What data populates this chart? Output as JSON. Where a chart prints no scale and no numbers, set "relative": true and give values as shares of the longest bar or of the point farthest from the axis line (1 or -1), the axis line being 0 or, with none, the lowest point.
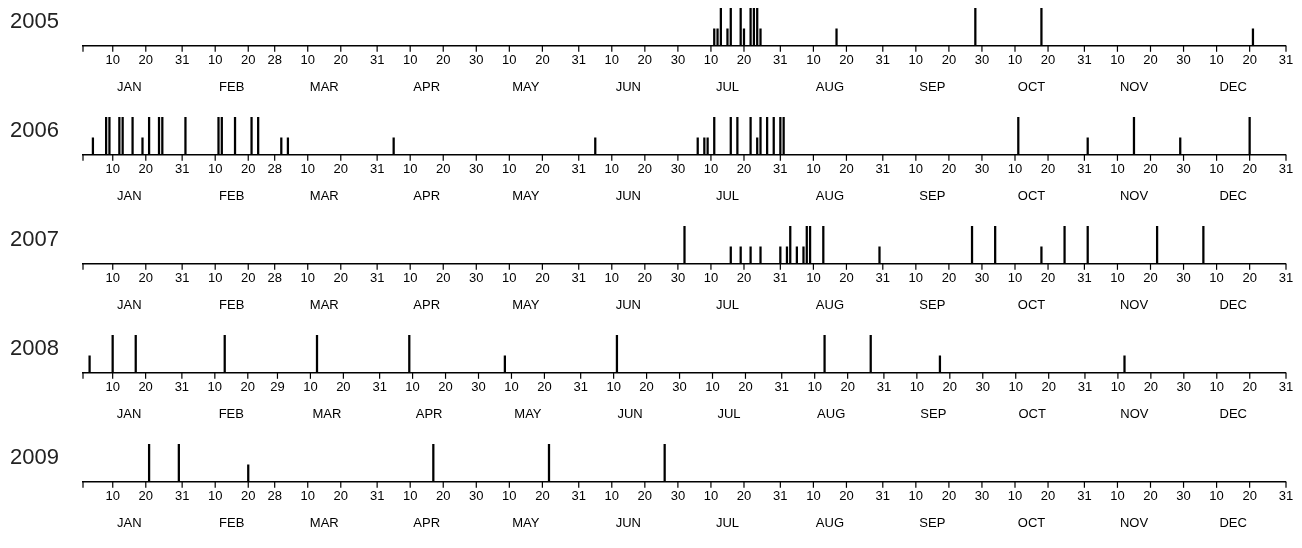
{
  "chart_data": [
    {
      "type": "bar",
      "title": "2005",
      "relative": true,
      "color": "#000000",
      "xlim": [
        "2005-01-01",
        "2005-12-31"
      ],
      "x": [
        "2005-07-11",
        "2005-07-12",
        "2005-07-13",
        "2005-07-15",
        "2005-07-16",
        "2005-07-19",
        "2005-07-20",
        "2005-07-22",
        "2005-07-23",
        "2005-07-24",
        "2005-07-25",
        "2005-08-17",
        "2005-09-28",
        "2005-10-18",
        "2005-12-21"
      ],
      "values": [
        0.45,
        0.45,
        1,
        0.45,
        1,
        1,
        0.45,
        1,
        1,
        1,
        0.45,
        0.45,
        1,
        1,
        0.45
      ],
      "xticks": [
        {
          "value": "2005-01-01",
          "label": null
        },
        {
          "value": "2005-01-10",
          "label": "10"
        },
        {
          "value": "2005-01-20",
          "label": "20"
        },
        {
          "value": "2005-01-31",
          "label": "31"
        },
        {
          "value": "2005-02-10",
          "label": "10"
        },
        {
          "value": "2005-02-20",
          "label": "20"
        },
        {
          "value": "2005-02-28",
          "label": "28"
        },
        {
          "value": "2005-03-10",
          "label": "10"
        },
        {
          "value": "2005-03-20",
          "label": "20"
        },
        {
          "value": "2005-03-31",
          "label": "31"
        },
        {
          "value": "2005-04-10",
          "label": "10"
        },
        {
          "value": "2005-04-20",
          "label": "20"
        },
        {
          "value": "2005-04-30",
          "label": "30"
        },
        {
          "value": "2005-05-10",
          "label": "10"
        },
        {
          "value": "2005-05-20",
          "label": "20"
        },
        {
          "value": "2005-05-31",
          "label": "31"
        },
        {
          "value": "2005-06-10",
          "label": "10"
        },
        {
          "value": "2005-06-20",
          "label": "20"
        },
        {
          "value": "2005-06-30",
          "label": "30"
        },
        {
          "value": "2005-07-10",
          "label": "10"
        },
        {
          "value": "2005-07-20",
          "label": "20"
        },
        {
          "value": "2005-07-31",
          "label": "31"
        },
        {
          "value": "2005-08-10",
          "label": "10"
        },
        {
          "value": "2005-08-20",
          "label": "20"
        },
        {
          "value": "2005-08-31",
          "label": "31"
        },
        {
          "value": "2005-09-10",
          "label": "10"
        },
        {
          "value": "2005-09-20",
          "label": "20"
        },
        {
          "value": "2005-09-30",
          "label": "30"
        },
        {
          "value": "2005-10-10",
          "label": "10"
        },
        {
          "value": "2005-10-20",
          "label": "20"
        },
        {
          "value": "2005-10-31",
          "label": "31"
        },
        {
          "value": "2005-11-10",
          "label": "10"
        },
        {
          "value": "2005-11-20",
          "label": "20"
        },
        {
          "value": "2005-11-30",
          "label": "30"
        },
        {
          "value": "2005-12-10",
          "label": "10"
        },
        {
          "value": "2005-12-20",
          "label": "20"
        },
        {
          "value": "2005-12-31",
          "label": "31"
        }
      ],
      "x2lim": [
        "2005-01-01",
        "2005-12-31"
      ],
      "x2ticks": [
        {
          "value": "2005-01-15",
          "label": "JAN"
        },
        {
          "value": "2005-02-15",
          "label": "FEB"
        },
        {
          "value": "2005-03-15",
          "label": "MAR"
        },
        {
          "value": "2005-04-15",
          "label": "APR"
        },
        {
          "value": "2005-05-15",
          "label": "MAY"
        },
        {
          "value": "2005-06-15",
          "label": "JUN"
        },
        {
          "value": "2005-07-15",
          "label": "JUL"
        },
        {
          "value": "2005-08-15",
          "label": "AUG"
        },
        {
          "value": "2005-09-15",
          "label": "SEP"
        },
        {
          "value": "2005-10-15",
          "label": "OCT"
        },
        {
          "value": "2005-11-15",
          "label": "NOV"
        },
        {
          "value": "2005-12-15",
          "label": "DEC"
        }
      ]
    },
    {
      "type": "bar",
      "title": "2006",
      "relative": true,
      "color": "#000000",
      "xlim": [
        "2006-01-01",
        "2006-12-31"
      ],
      "x": [
        "2006-01-04",
        "2006-01-08",
        "2006-01-09",
        "2006-01-12",
        "2006-01-13",
        "2006-01-16",
        "2006-01-19",
        "2006-01-21",
        "2006-01-24",
        "2006-01-25",
        "2006-02-01",
        "2006-02-11",
        "2006-02-12",
        "2006-02-16",
        "2006-02-21",
        "2006-02-23",
        "2006-03-02",
        "2006-03-04",
        "2006-04-05",
        "2006-06-05",
        "2006-07-06",
        "2006-07-08",
        "2006-07-09",
        "2006-07-11",
        "2006-07-16",
        "2006-07-18",
        "2006-07-22",
        "2006-07-24",
        "2006-07-25",
        "2006-07-27",
        "2006-07-29",
        "2006-07-31",
        "2006-08-01",
        "2006-10-11",
        "2006-11-01",
        "2006-11-15",
        "2006-11-29",
        "2006-12-20"
      ],
      "values": [
        0.45,
        1,
        1,
        1,
        1,
        1,
        0.45,
        1,
        1,
        1,
        1,
        1,
        1,
        1,
        1,
        1,
        0.45,
        0.45,
        0.45,
        0.45,
        0.45,
        0.45,
        0.45,
        1,
        1,
        1,
        1,
        0.45,
        1,
        1,
        1,
        1,
        1,
        1,
        0.45,
        1,
        0.45,
        1
      ],
      "xticks": [
        {
          "value": "2006-01-01",
          "label": null
        },
        {
          "value": "2006-01-10",
          "label": "10"
        },
        {
          "value": "2006-01-20",
          "label": "20"
        },
        {
          "value": "2006-01-31",
          "label": "31"
        },
        {
          "value": "2006-02-10",
          "label": "10"
        },
        {
          "value": "2006-02-20",
          "label": "20"
        },
        {
          "value": "2006-02-28",
          "label": "28"
        },
        {
          "value": "2006-03-10",
          "label": "10"
        },
        {
          "value": "2006-03-20",
          "label": "20"
        },
        {
          "value": "2006-03-31",
          "label": "31"
        },
        {
          "value": "2006-04-10",
          "label": "10"
        },
        {
          "value": "2006-04-20",
          "label": "20"
        },
        {
          "value": "2006-04-30",
          "label": "30"
        },
        {
          "value": "2006-05-10",
          "label": "10"
        },
        {
          "value": "2006-05-20",
          "label": "20"
        },
        {
          "value": "2006-05-31",
          "label": "31"
        },
        {
          "value": "2006-06-10",
          "label": "10"
        },
        {
          "value": "2006-06-20",
          "label": "20"
        },
        {
          "value": "2006-06-30",
          "label": "30"
        },
        {
          "value": "2006-07-10",
          "label": "10"
        },
        {
          "value": "2006-07-20",
          "label": "20"
        },
        {
          "value": "2006-07-31",
          "label": "31"
        },
        {
          "value": "2006-08-10",
          "label": "10"
        },
        {
          "value": "2006-08-20",
          "label": "20"
        },
        {
          "value": "2006-08-31",
          "label": "31"
        },
        {
          "value": "2006-09-10",
          "label": "10"
        },
        {
          "value": "2006-09-20",
          "label": "20"
        },
        {
          "value": "2006-09-30",
          "label": "30"
        },
        {
          "value": "2006-10-10",
          "label": "10"
        },
        {
          "value": "2006-10-20",
          "label": "20"
        },
        {
          "value": "2006-10-31",
          "label": "31"
        },
        {
          "value": "2006-11-10",
          "label": "10"
        },
        {
          "value": "2006-11-20",
          "label": "20"
        },
        {
          "value": "2006-11-30",
          "label": "30"
        },
        {
          "value": "2006-12-10",
          "label": "10"
        },
        {
          "value": "2006-12-20",
          "label": "20"
        },
        {
          "value": "2006-12-31",
          "label": "31"
        }
      ],
      "x2lim": [
        "2006-01-01",
        "2006-12-31"
      ],
      "x2ticks": [
        {
          "value": "2006-01-15",
          "label": "JAN"
        },
        {
          "value": "2006-02-15",
          "label": "FEB"
        },
        {
          "value": "2006-03-15",
          "label": "MAR"
        },
        {
          "value": "2006-04-15",
          "label": "APR"
        },
        {
          "value": "2006-05-15",
          "label": "MAY"
        },
        {
          "value": "2006-06-15",
          "label": "JUN"
        },
        {
          "value": "2006-07-15",
          "label": "JUL"
        },
        {
          "value": "2006-08-15",
          "label": "AUG"
        },
        {
          "value": "2006-09-15",
          "label": "SEP"
        },
        {
          "value": "2006-10-15",
          "label": "OCT"
        },
        {
          "value": "2006-11-15",
          "label": "NOV"
        },
        {
          "value": "2006-12-15",
          "label": "DEC"
        }
      ]
    },
    {
      "type": "bar",
      "title": "2007",
      "relative": true,
      "color": "#000000",
      "xlim": [
        "2007-01-01",
        "2007-12-31"
      ],
      "x": [
        "2007-07-02",
        "2007-07-16",
        "2007-07-19",
        "2007-07-22",
        "2007-07-25",
        "2007-07-31",
        "2007-08-02",
        "2007-08-03",
        "2007-08-05",
        "2007-08-07",
        "2007-08-08",
        "2007-08-09",
        "2007-08-13",
        "2007-08-30",
        "2007-09-27",
        "2007-10-04",
        "2007-10-18",
        "2007-10-25",
        "2007-11-01",
        "2007-11-22",
        "2007-12-06"
      ],
      "values": [
        1,
        0.45,
        0.45,
        0.45,
        0.45,
        0.45,
        0.45,
        1,
        0.45,
        0.45,
        1,
        1,
        1,
        0.45,
        1,
        1,
        0.45,
        1,
        1,
        1,
        1
      ],
      "xticks": [
        {
          "value": "2007-01-01",
          "label": null
        },
        {
          "value": "2007-01-10",
          "label": "10"
        },
        {
          "value": "2007-01-20",
          "label": "20"
        },
        {
          "value": "2007-01-31",
          "label": "31"
        },
        {
          "value": "2007-02-10",
          "label": "10"
        },
        {
          "value": "2007-02-20",
          "label": "20"
        },
        {
          "value": "2007-02-28",
          "label": "28"
        },
        {
          "value": "2007-03-10",
          "label": "10"
        },
        {
          "value": "2007-03-20",
          "label": "20"
        },
        {
          "value": "2007-03-31",
          "label": "31"
        },
        {
          "value": "2007-04-10",
          "label": "10"
        },
        {
          "value": "2007-04-20",
          "label": "20"
        },
        {
          "value": "2007-04-30",
          "label": "30"
        },
        {
          "value": "2007-05-10",
          "label": "10"
        },
        {
          "value": "2007-05-20",
          "label": "20"
        },
        {
          "value": "2007-05-31",
          "label": "31"
        },
        {
          "value": "2007-06-10",
          "label": "10"
        },
        {
          "value": "2007-06-20",
          "label": "20"
        },
        {
          "value": "2007-06-30",
          "label": "30"
        },
        {
          "value": "2007-07-10",
          "label": "10"
        },
        {
          "value": "2007-07-20",
          "label": "20"
        },
        {
          "value": "2007-07-31",
          "label": "31"
        },
        {
          "value": "2007-08-10",
          "label": "10"
        },
        {
          "value": "2007-08-20",
          "label": "20"
        },
        {
          "value": "2007-08-31",
          "label": "31"
        },
        {
          "value": "2007-09-10",
          "label": "10"
        },
        {
          "value": "2007-09-20",
          "label": "20"
        },
        {
          "value": "2007-09-30",
          "label": "30"
        },
        {
          "value": "2007-10-10",
          "label": "10"
        },
        {
          "value": "2007-10-20",
          "label": "20"
        },
        {
          "value": "2007-10-31",
          "label": "31"
        },
        {
          "value": "2007-11-10",
          "label": "10"
        },
        {
          "value": "2007-11-20",
          "label": "20"
        },
        {
          "value": "2007-11-30",
          "label": "30"
        },
        {
          "value": "2007-12-10",
          "label": "10"
        },
        {
          "value": "2007-12-20",
          "label": "20"
        },
        {
          "value": "2007-12-31",
          "label": "31"
        }
      ],
      "x2lim": [
        "2007-01-01",
        "2007-12-31"
      ],
      "x2ticks": [
        {
          "value": "2007-01-15",
          "label": "JAN"
        },
        {
          "value": "2007-02-15",
          "label": "FEB"
        },
        {
          "value": "2007-03-15",
          "label": "MAR"
        },
        {
          "value": "2007-04-15",
          "label": "APR"
        },
        {
          "value": "2007-05-15",
          "label": "MAY"
        },
        {
          "value": "2007-06-15",
          "label": "JUN"
        },
        {
          "value": "2007-07-15",
          "label": "JUL"
        },
        {
          "value": "2007-08-15",
          "label": "AUG"
        },
        {
          "value": "2007-09-15",
          "label": "SEP"
        },
        {
          "value": "2007-10-15",
          "label": "OCT"
        },
        {
          "value": "2007-11-15",
          "label": "NOV"
        },
        {
          "value": "2007-12-15",
          "label": "DEC"
        }
      ]
    },
    {
      "type": "bar",
      "title": "2008",
      "relative": true,
      "color": "#000000",
      "xlim": [
        "2008-01-01",
        "2008-12-31"
      ],
      "x": [
        "2008-01-03",
        "2008-01-10",
        "2008-01-17",
        "2008-02-13",
        "2008-03-12",
        "2008-04-09",
        "2008-05-08",
        "2008-06-11",
        "2008-08-13",
        "2008-08-27",
        "2008-09-17",
        "2008-11-12"
      ],
      "values": [
        0.45,
        1,
        1,
        1,
        1,
        1,
        0.45,
        1,
        1,
        1,
        0.45,
        0.45
      ],
      "xticks": [
        {
          "value": "2008-01-01",
          "label": null
        },
        {
          "value": "2008-01-10",
          "label": "10"
        },
        {
          "value": "2008-01-20",
          "label": "20"
        },
        {
          "value": "2008-01-31",
          "label": "31"
        },
        {
          "value": "2008-02-10",
          "label": "10"
        },
        {
          "value": "2008-02-20",
          "label": "20"
        },
        {
          "value": "2008-02-29",
          "label": "29"
        },
        {
          "value": "2008-03-10",
          "label": "10"
        },
        {
          "value": "2008-03-20",
          "label": "20"
        },
        {
          "value": "2008-03-31",
          "label": "31"
        },
        {
          "value": "2008-04-10",
          "label": "10"
        },
        {
          "value": "2008-04-20",
          "label": "20"
        },
        {
          "value": "2008-04-30",
          "label": "30"
        },
        {
          "value": "2008-05-10",
          "label": "10"
        },
        {
          "value": "2008-05-20",
          "label": "20"
        },
        {
          "value": "2008-05-31",
          "label": "31"
        },
        {
          "value": "2008-06-10",
          "label": "10"
        },
        {
          "value": "2008-06-20",
          "label": "20"
        },
        {
          "value": "2008-06-30",
          "label": "30"
        },
        {
          "value": "2008-07-10",
          "label": "10"
        },
        {
          "value": "2008-07-20",
          "label": "20"
        },
        {
          "value": "2008-07-31",
          "label": "31"
        },
        {
          "value": "2008-08-10",
          "label": "10"
        },
        {
          "value": "2008-08-20",
          "label": "20"
        },
        {
          "value": "2008-08-31",
          "label": "31"
        },
        {
          "value": "2008-09-10",
          "label": "10"
        },
        {
          "value": "2008-09-20",
          "label": "20"
        },
        {
          "value": "2008-09-30",
          "label": "30"
        },
        {
          "value": "2008-10-10",
          "label": "10"
        },
        {
          "value": "2008-10-20",
          "label": "20"
        },
        {
          "value": "2008-10-31",
          "label": "31"
        },
        {
          "value": "2008-11-10",
          "label": "10"
        },
        {
          "value": "2008-11-20",
          "label": "20"
        },
        {
          "value": "2008-11-30",
          "label": "30"
        },
        {
          "value": "2008-12-10",
          "label": "10"
        },
        {
          "value": "2008-12-20",
          "label": "20"
        },
        {
          "value": "2008-12-31",
          "label": "31"
        }
      ],
      "x2lim": [
        "2008-01-01",
        "2008-12-31"
      ],
      "x2ticks": [
        {
          "value": "2008-01-15",
          "label": "JAN"
        },
        {
          "value": "2008-02-15",
          "label": "FEB"
        },
        {
          "value": "2008-03-15",
          "label": "MAR"
        },
        {
          "value": "2008-04-15",
          "label": "APR"
        },
        {
          "value": "2008-05-15",
          "label": "MAY"
        },
        {
          "value": "2008-06-15",
          "label": "JUN"
        },
        {
          "value": "2008-07-15",
          "label": "JUL"
        },
        {
          "value": "2008-08-15",
          "label": "AUG"
        },
        {
          "value": "2008-09-15",
          "label": "SEP"
        },
        {
          "value": "2008-10-15",
          "label": "OCT"
        },
        {
          "value": "2008-11-15",
          "label": "NOV"
        },
        {
          "value": "2008-12-15",
          "label": "DEC"
        }
      ]
    },
    {
      "type": "bar",
      "title": "2009",
      "relative": true,
      "color": "#000000",
      "xlim": [
        "2009-01-01",
        "2009-12-31"
      ],
      "x": [
        "2009-01-21",
        "2009-01-30",
        "2009-02-20",
        "2009-04-17",
        "2009-05-22",
        "2009-06-26"
      ],
      "values": [
        1,
        1,
        0.45,
        1,
        1,
        1
      ],
      "xticks": [
        {
          "value": "2009-01-01",
          "label": null
        },
        {
          "value": "2009-01-10",
          "label": "10"
        },
        {
          "value": "2009-01-20",
          "label": "20"
        },
        {
          "value": "2009-01-31",
          "label": "31"
        },
        {
          "value": "2009-02-10",
          "label": "10"
        },
        {
          "value": "2009-02-20",
          "label": "20"
        },
        {
          "value": "2009-02-28",
          "label": "28"
        },
        {
          "value": "2009-03-10",
          "label": "10"
        },
        {
          "value": "2009-03-20",
          "label": "20"
        },
        {
          "value": "2009-03-31",
          "label": "31"
        },
        {
          "value": "2009-04-10",
          "label": "10"
        },
        {
          "value": "2009-04-20",
          "label": "20"
        },
        {
          "value": "2009-04-30",
          "label": "30"
        },
        {
          "value": "2009-05-10",
          "label": "10"
        },
        {
          "value": "2009-05-20",
          "label": "20"
        },
        {
          "value": "2009-05-31",
          "label": "31"
        },
        {
          "value": "2009-06-10",
          "label": "10"
        },
        {
          "value": "2009-06-20",
          "label": "20"
        },
        {
          "value": "2009-06-30",
          "label": "30"
        },
        {
          "value": "2009-07-10",
          "label": "10"
        },
        {
          "value": "2009-07-20",
          "label": "20"
        },
        {
          "value": "2009-07-31",
          "label": "31"
        },
        {
          "value": "2009-08-10",
          "label": "10"
        },
        {
          "value": "2009-08-20",
          "label": "20"
        },
        {
          "value": "2009-08-31",
          "label": "31"
        },
        {
          "value": "2009-09-10",
          "label": "10"
        },
        {
          "value": "2009-09-20",
          "label": "20"
        },
        {
          "value": "2009-09-30",
          "label": "30"
        },
        {
          "value": "2009-10-10",
          "label": "10"
        },
        {
          "value": "2009-10-20",
          "label": "20"
        },
        {
          "value": "2009-10-31",
          "label": "31"
        },
        {
          "value": "2009-11-10",
          "label": "10"
        },
        {
          "value": "2009-11-20",
          "label": "20"
        },
        {
          "value": "2009-11-30",
          "label": "30"
        },
        {
          "value": "2009-12-10",
          "label": "10"
        },
        {
          "value": "2009-12-20",
          "label": "20"
        },
        {
          "value": "2009-12-31",
          "label": "31"
        }
      ],
      "x2lim": [
        "2009-01-01",
        "2009-12-31"
      ],
      "x2ticks": [
        {
          "value": "2009-01-15",
          "label": "JAN"
        },
        {
          "value": "2009-02-15",
          "label": "FEB"
        },
        {
          "value": "2009-03-15",
          "label": "MAR"
        },
        {
          "value": "2009-04-15",
          "label": "APR"
        },
        {
          "value": "2009-05-15",
          "label": "MAY"
        },
        {
          "value": "2009-06-15",
          "label": "JUN"
        },
        {
          "value": "2009-07-15",
          "label": "JUL"
        },
        {
          "value": "2009-08-15",
          "label": "AUG"
        },
        {
          "value": "2009-09-15",
          "label": "SEP"
        },
        {
          "value": "2009-10-15",
          "label": "OCT"
        },
        {
          "value": "2009-11-15",
          "label": "NOV"
        },
        {
          "value": "2009-12-15",
          "label": "DEC"
        }
      ]
    }
  ]
}
